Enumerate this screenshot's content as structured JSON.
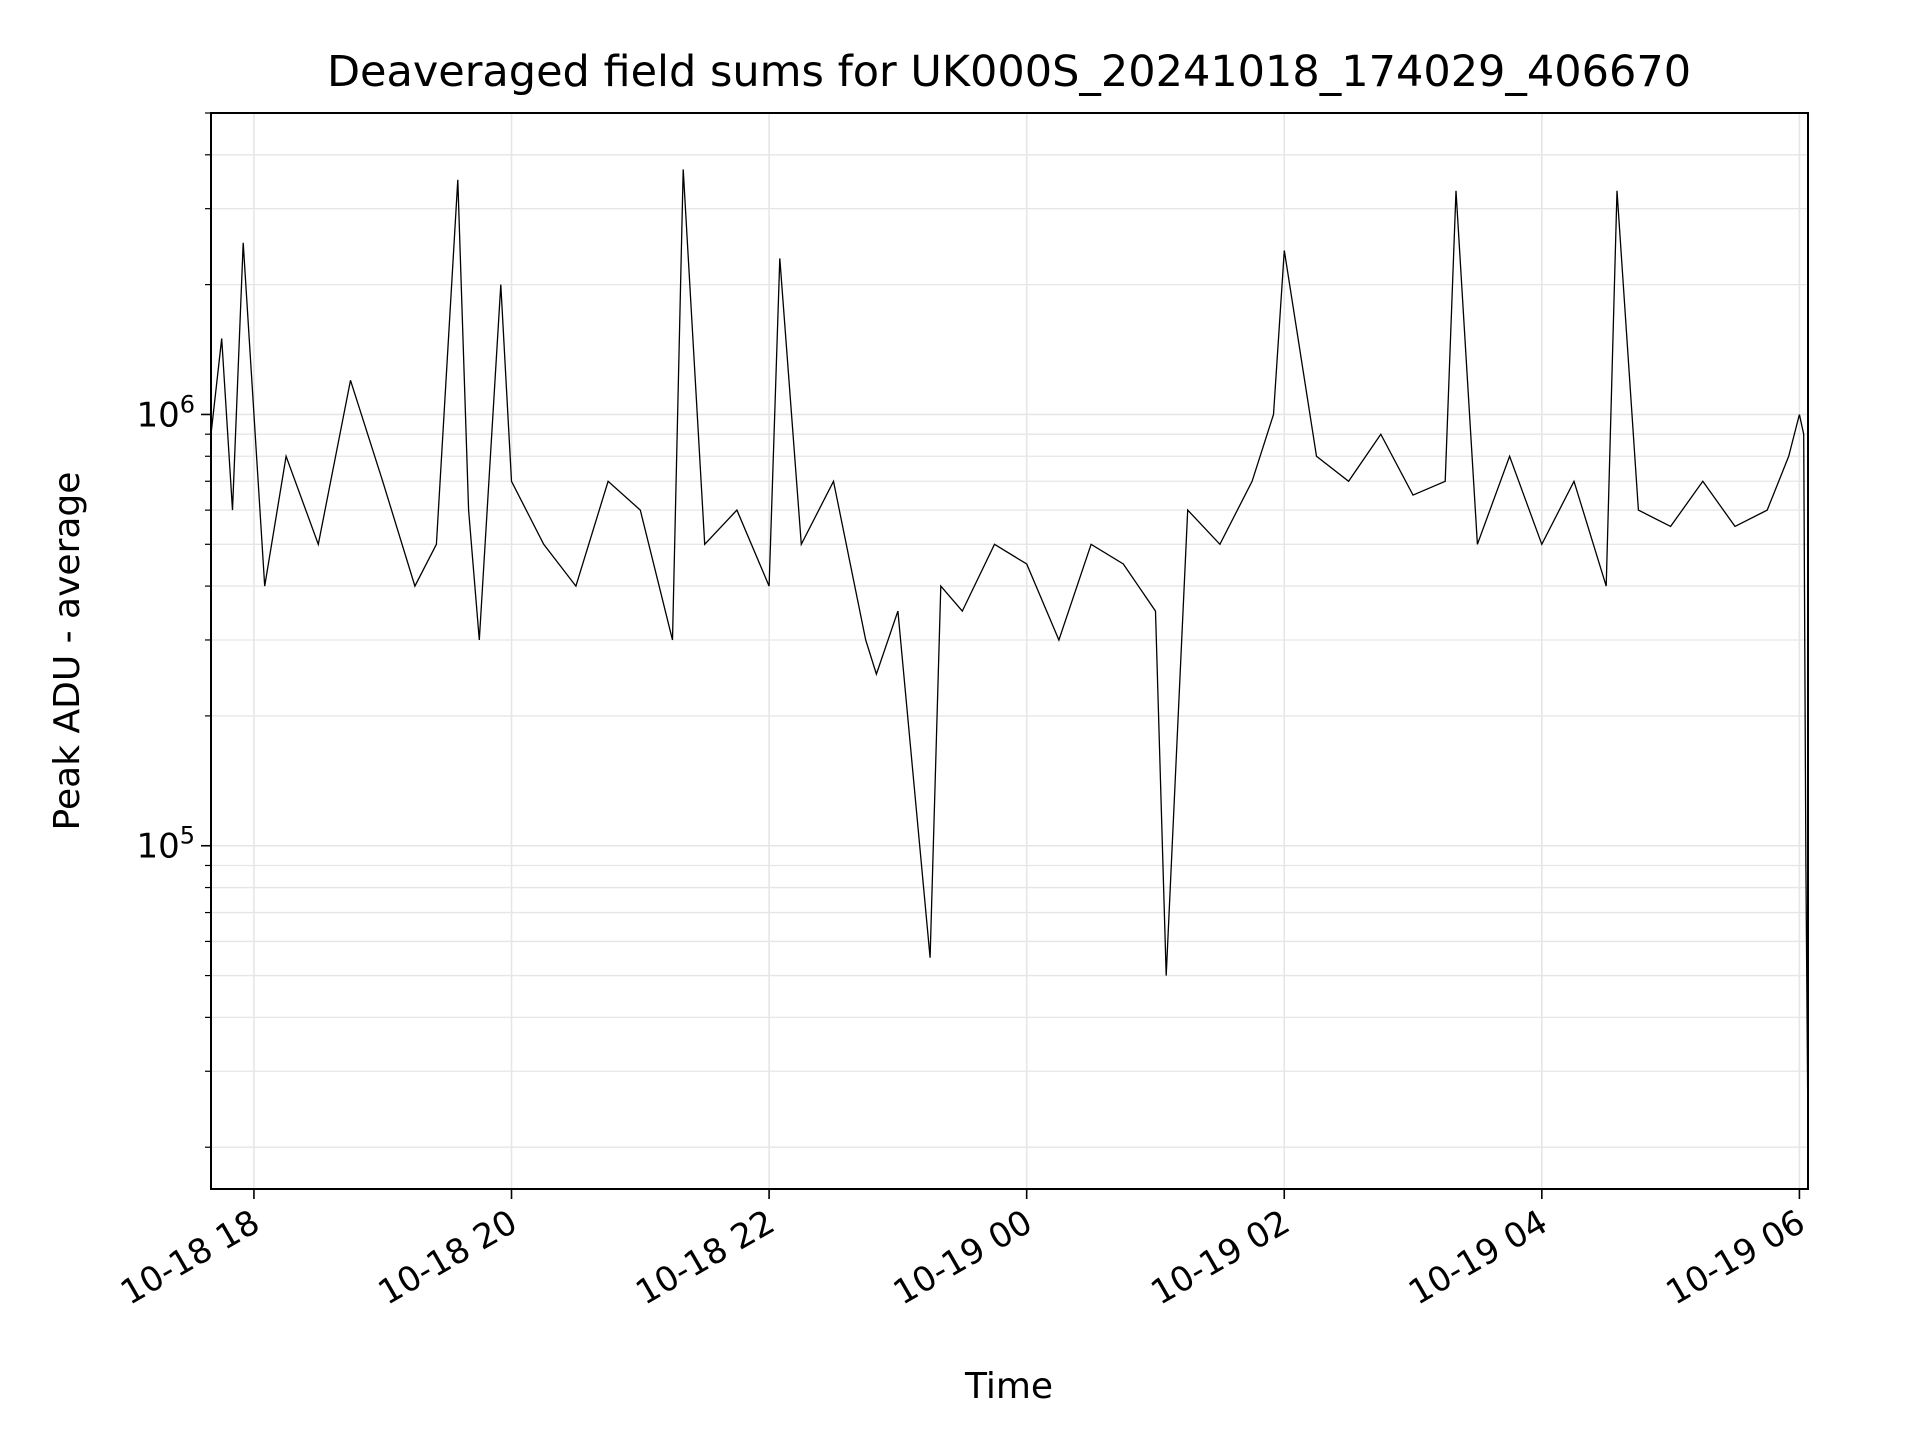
{
  "chart_data": {
    "type": "line",
    "title": "Deaveraged field sums for UK000S_20241018_174029_406670",
    "xlabel": "Time",
    "ylabel": "Peak ADU - average",
    "yscale": "log",
    "ylim": [
      16000,
      5000000
    ],
    "xlim": [
      "2024-10-18 17:40",
      "2024-10-19 06:04"
    ],
    "grid": true,
    "line_color": "#000000",
    "grid_color": "#e6e6e6",
    "x_ticks": [
      {
        "value": "2024-10-18 18:00",
        "label": "10-18 18"
      },
      {
        "value": "2024-10-18 20:00",
        "label": "10-18 20"
      },
      {
        "value": "2024-10-18 22:00",
        "label": "10-18 22"
      },
      {
        "value": "2024-10-19 00:00",
        "label": "10-19 00"
      },
      {
        "value": "2024-10-19 02:00",
        "label": "10-19 02"
      },
      {
        "value": "2024-10-19 04:00",
        "label": "10-19 04"
      },
      {
        "value": "2024-10-19 06:00",
        "label": "10-19 06"
      }
    ],
    "y_ticks": [
      {
        "value": 100000,
        "base": "10",
        "exp": "5"
      },
      {
        "value": 1000000,
        "base": "10",
        "exp": "6"
      }
    ],
    "series": [
      {
        "x": [
          "2024-10-18 17:40",
          "2024-10-18 17:45",
          "2024-10-18 17:50",
          "2024-10-18 17:55",
          "2024-10-18 18:05",
          "2024-10-18 18:15",
          "2024-10-18 18:30",
          "2024-10-18 18:45",
          "2024-10-18 19:00",
          "2024-10-18 19:15",
          "2024-10-18 19:25",
          "2024-10-18 19:35",
          "2024-10-18 19:40",
          "2024-10-18 19:45",
          "2024-10-18 19:55",
          "2024-10-18 20:00",
          "2024-10-18 20:15",
          "2024-10-18 20:30",
          "2024-10-18 20:45",
          "2024-10-18 21:00",
          "2024-10-18 21:15",
          "2024-10-18 21:20",
          "2024-10-18 21:30",
          "2024-10-18 21:45",
          "2024-10-18 22:00",
          "2024-10-18 22:05",
          "2024-10-18 22:15",
          "2024-10-18 22:30",
          "2024-10-18 22:45",
          "2024-10-18 22:50",
          "2024-10-18 23:00",
          "2024-10-18 23:15",
          "2024-10-18 23:20",
          "2024-10-18 23:30",
          "2024-10-18 23:45",
          "2024-10-19 00:00",
          "2024-10-19 00:15",
          "2024-10-19 00:30",
          "2024-10-19 00:45",
          "2024-10-19 01:00",
          "2024-10-19 01:05",
          "2024-10-19 01:15",
          "2024-10-19 01:30",
          "2024-10-19 01:45",
          "2024-10-19 01:55",
          "2024-10-19 02:00",
          "2024-10-19 02:15",
          "2024-10-19 02:30",
          "2024-10-19 02:45",
          "2024-10-19 03:00",
          "2024-10-19 03:15",
          "2024-10-19 03:20",
          "2024-10-19 03:30",
          "2024-10-19 03:45",
          "2024-10-19 04:00",
          "2024-10-19 04:15",
          "2024-10-19 04:30",
          "2024-10-19 04:35",
          "2024-10-19 04:45",
          "2024-10-19 05:00",
          "2024-10-19 05:15",
          "2024-10-19 05:30",
          "2024-10-19 05:45",
          "2024-10-19 05:55",
          "2024-10-19 06:00",
          "2024-10-19 06:02",
          "2024-10-19 06:03",
          "2024-10-19 06:04"
        ],
        "y": [
          900000,
          1500000,
          600000,
          2500000,
          400000,
          800000,
          500000,
          1200000,
          700000,
          400000,
          500000,
          3500000,
          600000,
          300000,
          2000000,
          700000,
          500000,
          400000,
          700000,
          600000,
          300000,
          3700000,
          500000,
          600000,
          400000,
          2300000,
          500000,
          700000,
          300000,
          250000,
          350000,
          55000,
          400000,
          350000,
          500000,
          450000,
          300000,
          500000,
          450000,
          350000,
          50000,
          600000,
          500000,
          700000,
          1000000,
          2400000,
          800000,
          700000,
          900000,
          650000,
          700000,
          3300000,
          500000,
          800000,
          500000,
          700000,
          400000,
          3300000,
          600000,
          550000,
          700000,
          550000,
          600000,
          800000,
          1000000,
          900000,
          90000,
          21000
        ]
      }
    ]
  }
}
